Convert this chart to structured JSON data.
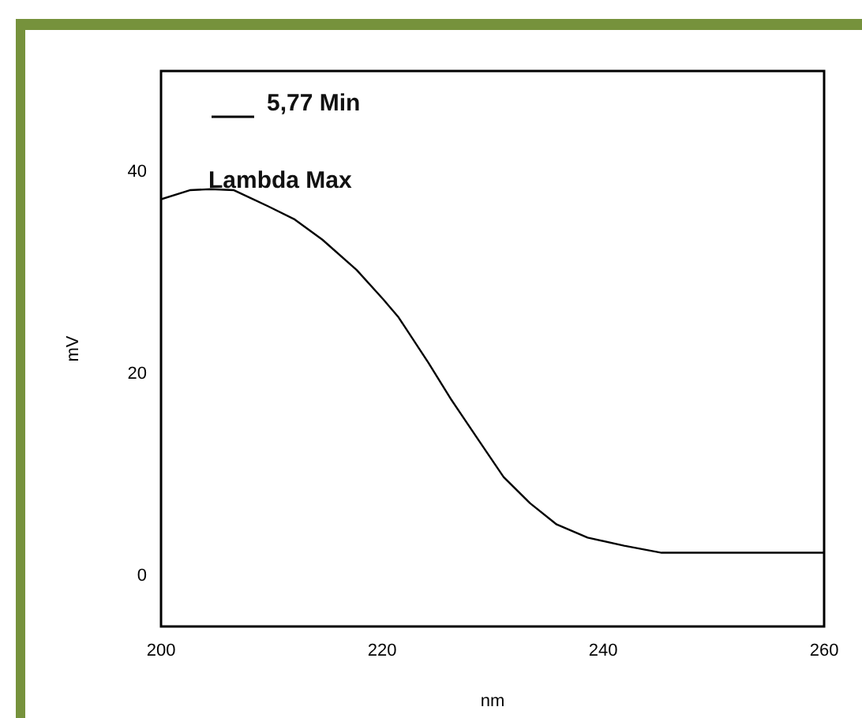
{
  "chart_data": {
    "type": "line",
    "xlabel": "nm",
    "ylabel": "mV",
    "annotations": [
      "Lambda Max"
    ],
    "legend": "top left",
    "grid": false,
    "marker": "none",
    "line_style": "solid",
    "xlim": [
      200,
      260
    ],
    "xticks": [
      200,
      220,
      240,
      260
    ],
    "ylim": [
      -5,
      50
    ],
    "yticks": [
      0,
      20,
      40
    ],
    "series": [
      {
        "name": "5,77 Min",
        "color": "#000000",
        "x": [
          200,
          202.6,
          204.5,
          206.6,
          209.7,
          212.1,
          214.6,
          217.7,
          220.1,
          221.5,
          224.2,
          226.3,
          228.7,
          231,
          233.4,
          235.8,
          238.6,
          241.9,
          245.3,
          260
        ],
        "values": [
          37.3,
          38.2,
          38.3,
          38.2,
          36.6,
          35.3,
          33.3,
          30.3,
          27.4,
          25.6,
          21.1,
          17.4,
          13.5,
          9.8,
          7.2,
          5.1,
          3.8,
          3,
          2.3,
          2.3
        ]
      }
    ]
  }
}
